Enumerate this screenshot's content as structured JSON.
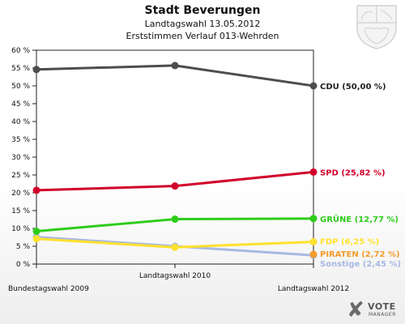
{
  "header": {
    "title": "Stadt Beverungen",
    "subtitle": "Landtagswahl 13.05.2012",
    "subtitle2": "Erststimmen Verlauf 013-Wehrden"
  },
  "branding": {
    "logo_line1": "VOTE",
    "logo_line2": "MANAGER"
  },
  "chart_data": {
    "type": "line",
    "title": "Stadt Beverungen",
    "subtitle": "Landtagswahl 13.05.2012 — Erststimmen Verlauf 013-Wehrden",
    "xlabel": "",
    "ylabel": "",
    "x": [
      "Bundestagswahl 2009",
      "Landtagswahl 2010",
      "Landtagswahl 2012"
    ],
    "ylim": [
      0,
      60
    ],
    "yticks": [
      0,
      5,
      10,
      15,
      20,
      25,
      30,
      35,
      40,
      45,
      50,
      55,
      60
    ],
    "ytick_labels": [
      "0 %",
      "5 %",
      "10 %",
      "15 %",
      "20 %",
      "25 %",
      "30 %",
      "35 %",
      "40 %",
      "45 %",
      "50 %",
      "55 %",
      "60 %"
    ],
    "grid": false,
    "legend": "end-labels-right",
    "series": [
      {
        "name": "Sonstige",
        "values": [
          7.6,
          5.0,
          2.45
        ],
        "color": "#a7b9e3",
        "label": "Sonstige (2,45 %)"
      },
      {
        "name": "FDP",
        "values": [
          7.1,
          4.7,
          6.25
        ],
        "color": "#ffe12e",
        "label": "FDP (6,25 %)"
      },
      {
        "name": "PIRATEN",
        "values": [
          null,
          null,
          2.72
        ],
        "color": "#f39c2c",
        "label": "PIRATEN (2,72 %)"
      },
      {
        "name": "GRÜNE",
        "values": [
          9.2,
          12.6,
          12.77
        ],
        "color": "#2ecc1a",
        "label": "GRÜNE (12,77 %)"
      },
      {
        "name": "SPD",
        "values": [
          20.7,
          21.9,
          25.82
        ],
        "color": "#d0002a",
        "label": "SPD (25,82 %)"
      },
      {
        "name": "CDU",
        "values": [
          54.6,
          55.7,
          50.0
        ],
        "color": "#4d4d4d",
        "label": "CDU (50,00 %)"
      }
    ]
  }
}
